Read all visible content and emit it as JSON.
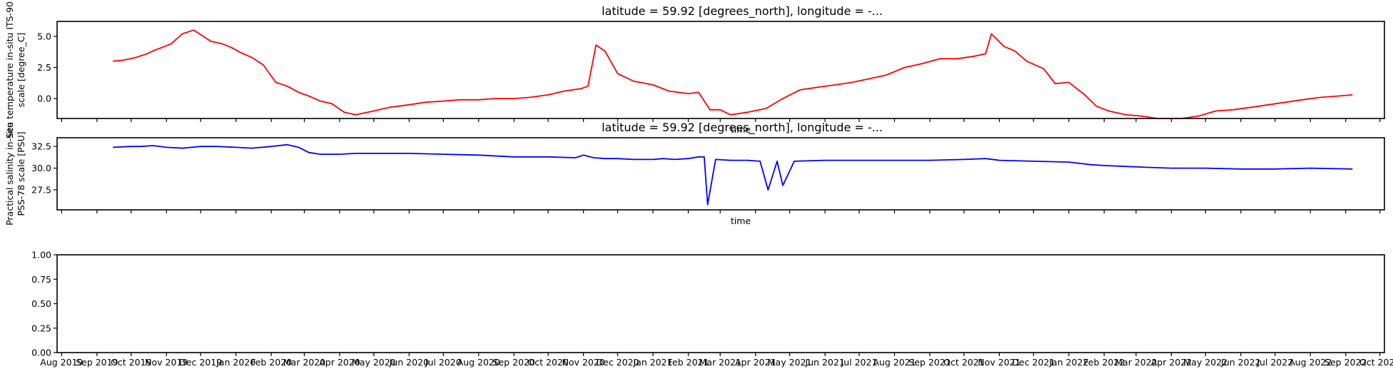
{
  "chart_data": [
    {
      "type": "line",
      "title": "latitude = 59.92 [degrees_north], longitude = -...",
      "ylabel_lines": [
        "Sea temperature in-situ ITS-90",
        "scale [degree_C]"
      ],
      "xlabel": "time",
      "ylim": [
        -1.6,
        6.2
      ],
      "xlim": [
        "2019-07-28",
        "2022-10-05"
      ],
      "yticks": [
        0.0,
        2.5,
        5.0
      ],
      "ytick_labels": [
        "0.0",
        "2.5",
        "5.0"
      ],
      "grid": false,
      "series": [
        {
          "color": "#ff0000",
          "x": [
            "2019-09-15",
            "2019-09-25",
            "2019-10-05",
            "2019-10-15",
            "2019-10-22",
            "2019-10-28",
            "2019-11-05",
            "2019-11-15",
            "2019-11-25",
            "2019-12-10",
            "2019-12-20",
            "2019-12-28",
            "2020-01-05",
            "2020-01-15",
            "2020-01-25",
            "2020-02-05",
            "2020-02-15",
            "2020-02-25",
            "2020-03-05",
            "2020-03-15",
            "2020-03-25",
            "2020-04-05",
            "2020-04-15",
            "2020-05-01",
            "2020-05-15",
            "2020-06-01",
            "2020-06-15",
            "2020-07-01",
            "2020-07-15",
            "2020-08-01",
            "2020-08-15",
            "2020-09-01",
            "2020-09-15",
            "2020-10-01",
            "2020-10-15",
            "2020-10-30",
            "2020-11-05",
            "2020-11-12",
            "2020-11-20",
            "2020-12-01",
            "2020-12-15",
            "2021-01-01",
            "2021-01-15",
            "2021-02-01",
            "2021-02-10",
            "2021-02-20",
            "2021-03-01",
            "2021-03-10",
            "2021-03-25",
            "2021-04-10",
            "2021-04-25",
            "2021-05-10",
            "2021-05-25",
            "2021-06-10",
            "2021-06-25",
            "2021-07-10",
            "2021-07-25",
            "2021-08-10",
            "2021-08-25",
            "2021-09-10",
            "2021-09-25",
            "2021-10-10",
            "2021-10-20",
            "2021-10-25",
            "2021-11-05",
            "2021-11-15",
            "2021-11-25",
            "2021-12-10",
            "2021-12-20",
            "2022-01-01",
            "2022-01-15",
            "2022-01-25",
            "2022-02-05",
            "2022-02-20",
            "2022-03-05",
            "2022-03-20",
            "2022-04-10",
            "2022-04-25",
            "2022-05-10",
            "2022-05-25",
            "2022-06-10",
            "2022-06-25",
            "2022-07-10",
            "2022-07-25",
            "2022-08-10",
            "2022-08-25",
            "2022-09-07"
          ],
          "y": [
            3.0,
            3.1,
            3.3,
            3.6,
            3.9,
            4.1,
            4.4,
            5.2,
            5.5,
            4.6,
            4.4,
            4.1,
            3.7,
            3.3,
            2.7,
            1.3,
            1.0,
            0.5,
            0.2,
            -0.2,
            -0.4,
            -1.1,
            -1.3,
            -1.0,
            -0.7,
            -0.5,
            -0.3,
            -0.2,
            -0.1,
            -0.1,
            0.0,
            0.0,
            0.1,
            0.3,
            0.6,
            0.8,
            1.0,
            4.3,
            3.8,
            2.0,
            1.4,
            1.1,
            0.6,
            0.4,
            0.5,
            -0.9,
            -0.9,
            -1.3,
            -1.1,
            -0.8,
            0.0,
            0.7,
            0.9,
            1.1,
            1.3,
            1.6,
            1.9,
            2.5,
            2.8,
            3.2,
            3.2,
            3.4,
            3.6,
            5.2,
            4.2,
            3.8,
            3.0,
            2.4,
            1.2,
            1.3,
            0.3,
            -0.6,
            -1.0,
            -1.3,
            -1.4,
            -1.6,
            -1.6,
            -1.4,
            -1.0,
            -0.9,
            -0.7,
            -0.5,
            -0.3,
            -0.1,
            0.1,
            0.2,
            0.3
          ]
        }
      ]
    },
    {
      "type": "line",
      "title": "latitude = 59.92 [degrees_north], longitude = -...",
      "ylabel_lines": [
        "Practical salinity in-situ",
        "PSS-78 scale [PSU]"
      ],
      "xlabel": "time",
      "ylim": [
        25.2,
        33.5
      ],
      "xlim": [
        "2019-07-28",
        "2022-10-05"
      ],
      "yticks": [
        27.5,
        30.0,
        32.5
      ],
      "ytick_labels": [
        "27.5",
        "30.0",
        "32.5"
      ],
      "grid": false,
      "series": [
        {
          "color": "#0000ff",
          "x": [
            "2019-09-15",
            "2019-10-01",
            "2019-10-10",
            "2019-10-20",
            "2019-11-01",
            "2019-11-15",
            "2019-12-01",
            "2019-12-15",
            "2020-01-01",
            "2020-01-15",
            "2020-02-01",
            "2020-02-15",
            "2020-02-25",
            "2020-03-05",
            "2020-03-15",
            "2020-04-01",
            "2020-04-15",
            "2020-05-01",
            "2020-06-01",
            "2020-07-01",
            "2020-08-01",
            "2020-09-01",
            "2020-10-01",
            "2020-10-25",
            "2020-11-01",
            "2020-11-10",
            "2020-11-20",
            "2020-12-01",
            "2020-12-15",
            "2021-01-01",
            "2021-01-10",
            "2021-01-20",
            "2021-02-01",
            "2021-02-10",
            "2021-02-15",
            "2021-02-18",
            "2021-02-25",
            "2021-03-10",
            "2021-03-25",
            "2021-04-05",
            "2021-04-12",
            "2021-04-20",
            "2021-04-25",
            "2021-05-05",
            "2021-06-01",
            "2021-07-01",
            "2021-08-01",
            "2021-09-01",
            "2021-10-01",
            "2021-10-20",
            "2021-11-01",
            "2021-12-01",
            "2022-01-01",
            "2022-01-20",
            "2022-02-01",
            "2022-02-20",
            "2022-03-10",
            "2022-04-01",
            "2022-05-01",
            "2022-06-01",
            "2022-07-01",
            "2022-08-01",
            "2022-09-07"
          ],
          "y": [
            32.4,
            32.5,
            32.5,
            32.6,
            32.4,
            32.3,
            32.5,
            32.5,
            32.4,
            32.3,
            32.5,
            32.7,
            32.4,
            31.8,
            31.6,
            31.6,
            31.7,
            31.7,
            31.7,
            31.6,
            31.5,
            31.3,
            31.3,
            31.2,
            31.5,
            31.2,
            31.1,
            31.1,
            31.0,
            31.0,
            31.1,
            31.0,
            31.1,
            31.3,
            31.3,
            25.8,
            31.0,
            30.9,
            30.9,
            30.8,
            27.5,
            30.8,
            28.0,
            30.8,
            30.9,
            30.9,
            30.9,
            30.9,
            31.0,
            31.1,
            30.9,
            30.8,
            30.7,
            30.4,
            30.3,
            30.2,
            30.1,
            30.0,
            30.0,
            29.9,
            29.9,
            30.0,
            29.9
          ]
        }
      ]
    },
    {
      "type": "line",
      "title": "",
      "ylabel_lines": [],
      "xlabel": "",
      "ylim": [
        0.0,
        1.0
      ],
      "xlim": [
        "2019-07-28",
        "2022-10-05"
      ],
      "yticks": [
        0.0,
        0.25,
        0.5,
        0.75,
        1.0
      ],
      "ytick_labels": [
        "0.00",
        "0.25",
        "0.50",
        "0.75",
        "1.00"
      ],
      "grid": false,
      "series": []
    }
  ],
  "x_tick_dates": [
    "2019-08-01",
    "2019-09-01",
    "2019-10-01",
    "2019-11-01",
    "2019-12-01",
    "2020-01-01",
    "2020-02-01",
    "2020-03-01",
    "2020-04-01",
    "2020-05-01",
    "2020-06-01",
    "2020-07-01",
    "2020-08-01",
    "2020-09-01",
    "2020-10-01",
    "2020-11-01",
    "2020-12-01",
    "2021-01-01",
    "2021-02-01",
    "2021-03-01",
    "2021-04-01",
    "2021-05-01",
    "2021-06-01",
    "2021-07-01",
    "2021-08-01",
    "2021-09-01",
    "2021-10-01",
    "2021-11-01",
    "2021-12-01",
    "2022-01-01",
    "2022-02-01",
    "2022-03-01",
    "2022-04-01",
    "2022-05-01",
    "2022-06-01",
    "2022-07-01",
    "2022-08-01",
    "2022-09-01",
    "2022-10-01"
  ],
  "x_tick_labels": [
    "Aug 2019",
    "Sep 2019",
    "Oct 2019",
    "Nov 2019",
    "Dec 2019",
    "Jan 2020",
    "Feb 2020",
    "Mar 2020",
    "Apr 2020",
    "May 2020",
    "Jun 2020",
    "Jul 2020",
    "Aug 2020",
    "Sep 2020",
    "Oct 2020",
    "Nov 2020",
    "Dec 2020",
    "Jan 2021",
    "Feb 2021",
    "Mar 2021",
    "Apr 2021",
    "May 2021",
    "Jun 2021",
    "Jul 2021",
    "Aug 2021",
    "Sep 2021",
    "Oct 2021",
    "Nov 2021",
    "Dec 2021",
    "Jan 2022",
    "Feb 2022",
    "Mar 2022",
    "Apr 2022",
    "May 2022",
    "Jun 2022",
    "Jul 2022",
    "Aug 2022",
    "Sep 2022",
    "Oct 2022"
  ]
}
